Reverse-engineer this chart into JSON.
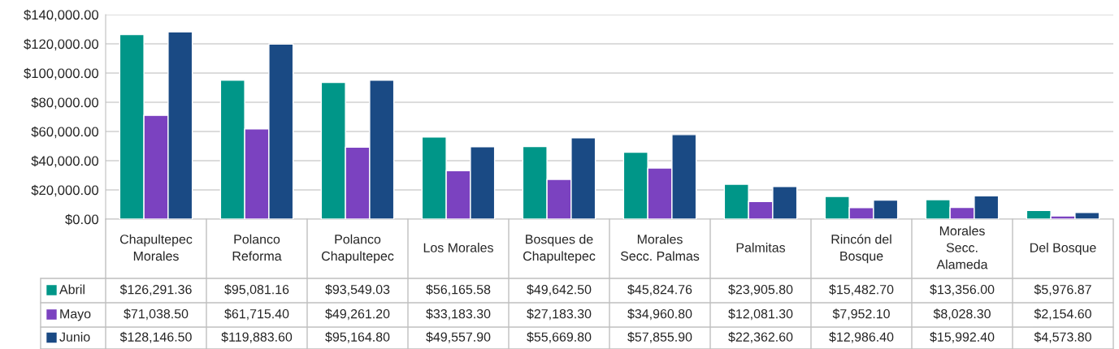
{
  "chart_data": {
    "type": "bar",
    "categories": [
      "Chapultepec Morales",
      "Polanco Reforma",
      "Polanco Chapultepec",
      "Los Morales",
      "Bosques de Chapultepec",
      "Morales Secc. Palmas",
      "Palmitas",
      "Rincón del Bosque",
      "Morales Secc. Alameda",
      "Del Bosque"
    ],
    "series": [
      {
        "name": "Abril",
        "color": "#009688",
        "values": [
          126291.36,
          95081.16,
          93549.03,
          56165.58,
          49642.5,
          45824.76,
          23905.8,
          15482.7,
          13356.0,
          5976.87
        ],
        "value_labels": [
          "$126,291.36",
          "$95,081.16",
          "$93,549.03",
          "$56,165.58",
          "$49,642.50",
          "$45,824.76",
          "$23,905.80",
          "$15,482.70",
          "$13,356.00",
          "$5,976.87"
        ]
      },
      {
        "name": "Mayo",
        "color": "#7B42C0",
        "values": [
          71038.5,
          61715.4,
          49261.2,
          33183.3,
          27183.3,
          34960.8,
          12081.3,
          7952.1,
          8028.3,
          2154.6
        ],
        "value_labels": [
          "$71,038.50",
          "$61,715.40",
          "$49,261.20",
          "$33,183.30",
          "$27,183.30",
          "$34,960.80",
          "$12,081.30",
          "$7,952.10",
          "$8,028.30",
          "$2,154.60"
        ]
      },
      {
        "name": "Junio",
        "color": "#1A4A84",
        "values": [
          128146.5,
          119883.6,
          95164.8,
          49557.9,
          55669.8,
          57855.9,
          22362.6,
          12986.4,
          15992.4,
          4573.8
        ],
        "value_labels": [
          "$128,146.50",
          "$119,883.60",
          "$95,164.80",
          "$49,557.90",
          "$55,669.80",
          "$57,855.90",
          "$22,362.60",
          "$12,986.40",
          "$15,992.40",
          "$4,573.80"
        ]
      }
    ],
    "ylim": [
      0,
      140000
    ],
    "yticks": [
      {
        "value": 0,
        "label": "$0.00"
      },
      {
        "value": 20000,
        "label": "$20,000.00"
      },
      {
        "value": 40000,
        "label": "$40,000.00"
      },
      {
        "value": 60000,
        "label": "$60,000.00"
      },
      {
        "value": 80000,
        "label": "$80,000.00"
      },
      {
        "value": 100000,
        "label": "$100,000.00"
      },
      {
        "value": 120000,
        "label": "$120,000.00"
      },
      {
        "value": 140000,
        "label": "$140,000.00"
      }
    ],
    "grid": "y",
    "legend": "bottom"
  }
}
